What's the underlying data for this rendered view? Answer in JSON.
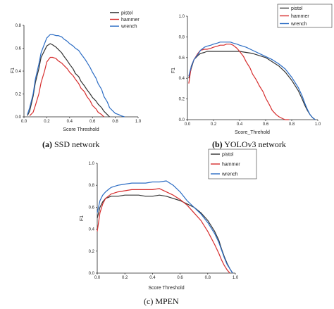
{
  "chart_data": [
    {
      "type": "line",
      "caption_letter": "(a)",
      "caption_text": " SSD network",
      "xlabel": "Score Threshold",
      "ylabel": "F1",
      "xlim": [
        0,
        1
      ],
      "ylim": [
        0,
        0.8
      ],
      "xticks": [
        "0.0",
        "0.2",
        "0.4",
        "0.6",
        "0.8",
        "1.0"
      ],
      "xtick_values": [
        0,
        0.2,
        0.4,
        0.6,
        0.8,
        1.0
      ],
      "yticks": [
        "0.0",
        "0.2",
        "0.4",
        "0.6",
        "0.8"
      ],
      "ytick_values": [
        0,
        0.2,
        0.4,
        0.6,
        0.8
      ],
      "legend_position": "top-right",
      "series": [
        {
          "name": "pistol",
          "color": "#333333",
          "x": [
            0.03,
            0.05,
            0.08,
            0.1,
            0.13,
            0.15,
            0.18,
            0.2,
            0.23,
            0.25,
            0.28,
            0.3,
            0.33,
            0.35,
            0.38,
            0.4,
            0.43,
            0.45,
            0.48,
            0.5,
            0.53,
            0.55,
            0.58,
            0.6,
            0.63,
            0.65,
            0.68,
            0.7,
            0.73,
            0.75
          ],
          "y": [
            0.01,
            0.05,
            0.18,
            0.3,
            0.42,
            0.52,
            0.58,
            0.62,
            0.64,
            0.63,
            0.61,
            0.59,
            0.56,
            0.53,
            0.49,
            0.46,
            0.42,
            0.38,
            0.35,
            0.31,
            0.27,
            0.24,
            0.2,
            0.17,
            0.14,
            0.11,
            0.08,
            0.05,
            0.02,
            0.0
          ]
        },
        {
          "name": "hammer",
          "color": "#d62d2d",
          "x": [
            0.05,
            0.08,
            0.1,
            0.13,
            0.15,
            0.18,
            0.2,
            0.23,
            0.25,
            0.28,
            0.3,
            0.33,
            0.35,
            0.38,
            0.4,
            0.43,
            0.45,
            0.48,
            0.5,
            0.53,
            0.55,
            0.58,
            0.6,
            0.63,
            0.65,
            0.68,
            0.7
          ],
          "y": [
            0.01,
            0.04,
            0.1,
            0.2,
            0.3,
            0.4,
            0.48,
            0.52,
            0.52,
            0.51,
            0.49,
            0.47,
            0.45,
            0.42,
            0.39,
            0.36,
            0.33,
            0.29,
            0.25,
            0.22,
            0.18,
            0.14,
            0.1,
            0.07,
            0.04,
            0.02,
            0.0
          ]
        },
        {
          "name": "wrench",
          "color": "#2b6cc4",
          "x": [
            0.03,
            0.05,
            0.08,
            0.1,
            0.13,
            0.15,
            0.18,
            0.2,
            0.23,
            0.25,
            0.28,
            0.3,
            0.33,
            0.35,
            0.38,
            0.4,
            0.43,
            0.45,
            0.48,
            0.5,
            0.53,
            0.55,
            0.58,
            0.6,
            0.63,
            0.65,
            0.68,
            0.7,
            0.73,
            0.75,
            0.78,
            0.8,
            0.83,
            0.85,
            0.88
          ],
          "y": [
            0.02,
            0.08,
            0.2,
            0.33,
            0.46,
            0.56,
            0.64,
            0.69,
            0.72,
            0.72,
            0.71,
            0.71,
            0.7,
            0.68,
            0.66,
            0.64,
            0.62,
            0.6,
            0.58,
            0.55,
            0.51,
            0.48,
            0.43,
            0.39,
            0.34,
            0.29,
            0.24,
            0.18,
            0.13,
            0.08,
            0.05,
            0.03,
            0.02,
            0.01,
            0.0
          ]
        }
      ]
    },
    {
      "type": "line",
      "caption_letter": "(b)",
      "caption_text": " YOLOv3 network",
      "xlabel": "Score_Threhold",
      "ylabel": "F1",
      "xlim": [
        0,
        1
      ],
      "ylim": [
        0,
        1
      ],
      "xticks": [
        "0.0",
        "0.2",
        "0.4",
        "0.6",
        "0.8",
        "1.0"
      ],
      "xtick_values": [
        0,
        0.2,
        0.4,
        0.6,
        0.8,
        1.0
      ],
      "yticks": [
        "0.0",
        "0.2",
        "0.4",
        "0.6",
        "0.8",
        "1.0"
      ],
      "ytick_values": [
        0,
        0.2,
        0.4,
        0.6,
        0.8,
        1.0
      ],
      "legend_position": "top-right",
      "series": [
        {
          "name": "pistol",
          "color": "#333333",
          "x": [
            0.01,
            0.03,
            0.05,
            0.08,
            0.1,
            0.13,
            0.15,
            0.18,
            0.2,
            0.25,
            0.3,
            0.35,
            0.4,
            0.45,
            0.5,
            0.55,
            0.6,
            0.65,
            0.7,
            0.75,
            0.8,
            0.85,
            0.88,
            0.9,
            0.92,
            0.94,
            0.96,
            0.98
          ],
          "y": [
            0.4,
            0.5,
            0.58,
            0.62,
            0.64,
            0.65,
            0.66,
            0.66,
            0.66,
            0.66,
            0.66,
            0.66,
            0.66,
            0.65,
            0.64,
            0.62,
            0.6,
            0.56,
            0.52,
            0.46,
            0.38,
            0.28,
            0.2,
            0.14,
            0.09,
            0.05,
            0.02,
            0.0
          ]
        },
        {
          "name": "hammer",
          "color": "#d62d2d",
          "x": [
            0.01,
            0.03,
            0.05,
            0.08,
            0.1,
            0.13,
            0.15,
            0.18,
            0.2,
            0.23,
            0.25,
            0.28,
            0.3,
            0.33,
            0.35,
            0.38,
            0.4,
            0.43,
            0.45,
            0.48,
            0.5,
            0.53,
            0.55,
            0.58,
            0.6,
            0.63,
            0.65,
            0.68,
            0.7,
            0.73,
            0.75,
            0.78
          ],
          "y": [
            0.35,
            0.52,
            0.58,
            0.64,
            0.67,
            0.68,
            0.68,
            0.69,
            0.7,
            0.71,
            0.72,
            0.72,
            0.73,
            0.73,
            0.72,
            0.69,
            0.66,
            0.61,
            0.56,
            0.5,
            0.44,
            0.38,
            0.33,
            0.27,
            0.21,
            0.14,
            0.09,
            0.05,
            0.03,
            0.01,
            0.0,
            0.0
          ]
        },
        {
          "name": "wrench",
          "color": "#2b6cc4",
          "x": [
            0.01,
            0.03,
            0.05,
            0.08,
            0.1,
            0.13,
            0.15,
            0.18,
            0.2,
            0.23,
            0.25,
            0.28,
            0.3,
            0.33,
            0.35,
            0.38,
            0.4,
            0.45,
            0.5,
            0.55,
            0.6,
            0.65,
            0.7,
            0.75,
            0.8,
            0.85,
            0.88,
            0.9,
            0.92,
            0.94,
            0.96,
            0.98
          ],
          "y": [
            0.42,
            0.52,
            0.58,
            0.63,
            0.67,
            0.7,
            0.71,
            0.72,
            0.73,
            0.74,
            0.75,
            0.75,
            0.75,
            0.75,
            0.74,
            0.73,
            0.72,
            0.7,
            0.67,
            0.64,
            0.61,
            0.58,
            0.54,
            0.49,
            0.41,
            0.31,
            0.23,
            0.16,
            0.1,
            0.05,
            0.02,
            0.0
          ]
        }
      ]
    },
    {
      "type": "line",
      "caption_letter": "",
      "caption_text": "(c) MPEN",
      "xlabel": "Score Threshold",
      "ylabel": "F1",
      "xlim": [
        0,
        1
      ],
      "ylim": [
        0,
        1
      ],
      "xticks": [
        "0.0",
        "0.2",
        "0.4",
        "0.6",
        "0.8",
        "1.0"
      ],
      "xtick_values": [
        0,
        0.2,
        0.4,
        0.6,
        0.8,
        1.0
      ],
      "yticks": [
        "0.0",
        "0.2",
        "0.4",
        "0.6",
        "0.8",
        "1.0"
      ],
      "ytick_values": [
        0,
        0.2,
        0.4,
        0.6,
        0.8,
        1.0
      ],
      "legend_position": "top-right",
      "series": [
        {
          "name": "pistol",
          "color": "#333333",
          "x": [
            0.0,
            0.02,
            0.04,
            0.06,
            0.08,
            0.1,
            0.15,
            0.2,
            0.25,
            0.3,
            0.35,
            0.4,
            0.45,
            0.5,
            0.55,
            0.6,
            0.65,
            0.7,
            0.75,
            0.8,
            0.85,
            0.88,
            0.9,
            0.92,
            0.94,
            0.96,
            0.98
          ],
          "y": [
            0.5,
            0.6,
            0.65,
            0.68,
            0.69,
            0.7,
            0.7,
            0.71,
            0.71,
            0.71,
            0.7,
            0.7,
            0.71,
            0.7,
            0.68,
            0.66,
            0.63,
            0.6,
            0.55,
            0.48,
            0.38,
            0.3,
            0.22,
            0.15,
            0.09,
            0.04,
            0.0
          ]
        },
        {
          "name": "hammer",
          "color": "#d62d2d",
          "x": [
            0.0,
            0.02,
            0.04,
            0.06,
            0.08,
            0.1,
            0.15,
            0.2,
            0.25,
            0.3,
            0.35,
            0.4,
            0.45,
            0.5,
            0.55,
            0.6,
            0.65,
            0.7,
            0.75,
            0.8,
            0.85,
            0.88,
            0.9,
            0.92,
            0.94,
            0.96
          ],
          "y": [
            0.38,
            0.55,
            0.63,
            0.68,
            0.7,
            0.72,
            0.74,
            0.75,
            0.76,
            0.76,
            0.76,
            0.76,
            0.77,
            0.74,
            0.71,
            0.67,
            0.62,
            0.55,
            0.48,
            0.38,
            0.26,
            0.18,
            0.12,
            0.07,
            0.03,
            0.0
          ]
        },
        {
          "name": "wrench",
          "color": "#2b6cc4",
          "x": [
            0.0,
            0.02,
            0.04,
            0.06,
            0.08,
            0.1,
            0.15,
            0.2,
            0.25,
            0.3,
            0.35,
            0.4,
            0.45,
            0.5,
            0.55,
            0.6,
            0.65,
            0.7,
            0.75,
            0.8,
            0.85,
            0.88,
            0.9,
            0.92,
            0.94,
            0.96,
            0.98
          ],
          "y": [
            0.55,
            0.66,
            0.71,
            0.74,
            0.76,
            0.78,
            0.8,
            0.81,
            0.82,
            0.82,
            0.82,
            0.83,
            0.83,
            0.84,
            0.8,
            0.74,
            0.66,
            0.6,
            0.54,
            0.46,
            0.36,
            0.28,
            0.21,
            0.14,
            0.08,
            0.04,
            0.0
          ]
        }
      ]
    }
  ]
}
